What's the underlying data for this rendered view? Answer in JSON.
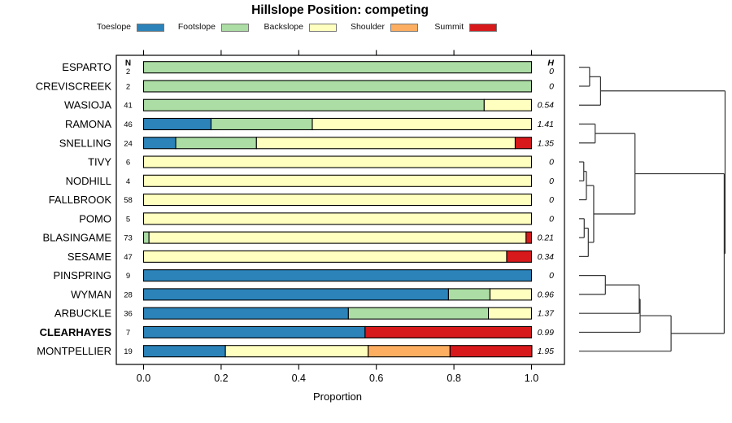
{
  "title": "Hillslope Position: competing",
  "legend": {
    "items": [
      {
        "label": "Toeslope",
        "color": "#2B83BA"
      },
      {
        "label": "Footslope",
        "color": "#ABDDA4"
      },
      {
        "label": "Backslope",
        "color": "#FFFFBF"
      },
      {
        "label": "Shoulder",
        "color": "#FDAE61"
      },
      {
        "label": "Summit",
        "color": "#D7191C"
      }
    ]
  },
  "chart_data": {
    "type": "bar",
    "orientation": "horizontal-stacked",
    "title": "Hillslope Position: competing",
    "xlabel": "Proportion",
    "xlim": [
      0,
      1
    ],
    "x_ticks": [
      "0.0",
      "0.2",
      "0.4",
      "0.6",
      "0.8",
      "1.0"
    ],
    "n_header": "N",
    "h_header": "H",
    "series_names": [
      "Toeslope",
      "Footslope",
      "Backslope",
      "Shoulder",
      "Summit"
    ],
    "series_colors": [
      "#2B83BA",
      "#ABDDA4",
      "#FFFFBF",
      "#FDAE61",
      "#D7191C"
    ],
    "rows": [
      {
        "name": "ESPARTO",
        "n": 2,
        "h": "0",
        "bold": false,
        "values": [
          0,
          1,
          0,
          0,
          0
        ]
      },
      {
        "name": "CREVISCREEK",
        "n": 2,
        "h": "0",
        "bold": false,
        "values": [
          0,
          1,
          0,
          0,
          0
        ]
      },
      {
        "name": "WASIOJA",
        "n": 41,
        "h": "0.54",
        "bold": false,
        "values": [
          0,
          0.878,
          0.122,
          0,
          0
        ]
      },
      {
        "name": "RAMONA",
        "n": 46,
        "h": "1.41",
        "bold": false,
        "values": [
          0.174,
          0.261,
          0.565,
          0,
          0
        ]
      },
      {
        "name": "SNELLING",
        "n": 24,
        "h": "1.35",
        "bold": false,
        "values": [
          0.083,
          0.208,
          0.667,
          0,
          0.042
        ]
      },
      {
        "name": "TIVY",
        "n": 6,
        "h": "0",
        "bold": false,
        "values": [
          0,
          0,
          1,
          0,
          0
        ]
      },
      {
        "name": "NODHILL",
        "n": 4,
        "h": "0",
        "bold": false,
        "values": [
          0,
          0,
          1,
          0,
          0
        ]
      },
      {
        "name": "FALLBROOK",
        "n": 58,
        "h": "0",
        "bold": false,
        "values": [
          0,
          0,
          1,
          0,
          0
        ]
      },
      {
        "name": "POMO",
        "n": 5,
        "h": "0",
        "bold": false,
        "values": [
          0,
          0,
          1,
          0,
          0
        ]
      },
      {
        "name": "BLASINGAME",
        "n": 73,
        "h": "0.21",
        "bold": false,
        "values": [
          0,
          0.014,
          0.972,
          0,
          0.014
        ]
      },
      {
        "name": "SESAME",
        "n": 47,
        "h": "0.34",
        "bold": false,
        "values": [
          0,
          0,
          0.936,
          0,
          0.064
        ]
      },
      {
        "name": "PINSPRING",
        "n": 9,
        "h": "0",
        "bold": false,
        "values": [
          1,
          0,
          0,
          0,
          0
        ]
      },
      {
        "name": "WYMAN",
        "n": 28,
        "h": "0.96",
        "bold": false,
        "values": [
          0.786,
          0.107,
          0.107,
          0,
          0
        ]
      },
      {
        "name": "ARBUCKLE",
        "n": 36,
        "h": "1.37",
        "bold": false,
        "values": [
          0.528,
          0.361,
          0.111,
          0,
          0
        ]
      },
      {
        "name": "CLEARHAYES",
        "n": 7,
        "h": "0.99",
        "bold": true,
        "values": [
          0.571,
          0,
          0,
          0,
          0.429
        ]
      },
      {
        "name": "MONTPELLIER",
        "n": 19,
        "h": "1.95",
        "bold": false,
        "values": [
          0.211,
          0,
          0.368,
          0.211,
          0.211
        ]
      }
    ],
    "dendrogram": {
      "merges": [
        {
          "id": "M0",
          "a": "L0",
          "b": "L1",
          "height": 0.072
        },
        {
          "id": "M1",
          "a": "M0",
          "b": "L2",
          "height": 0.147
        },
        {
          "id": "M2",
          "a": "L3",
          "b": "L4",
          "height": 0.11
        },
        {
          "id": "M3",
          "a": "L5",
          "b": "L6",
          "height": 0.032
        },
        {
          "id": "M4",
          "a": "M3",
          "b": "L7",
          "height": 0.05
        },
        {
          "id": "M5",
          "a": "L8",
          "b": "L9",
          "height": 0.035
        },
        {
          "id": "M6",
          "a": "M5",
          "b": "L10",
          "height": 0.063
        },
        {
          "id": "M7",
          "a": "M4",
          "b": "M6",
          "height": 0.1
        },
        {
          "id": "M8",
          "a": "M2",
          "b": "M7",
          "height": 0.383
        },
        {
          "id": "M9",
          "a": "L11",
          "b": "L12",
          "height": 0.18
        },
        {
          "id": "M10",
          "a": "M9",
          "b": "L13",
          "height": 0.412
        },
        {
          "id": "M11",
          "a": "M10",
          "b": "L14",
          "height": 0.418
        },
        {
          "id": "M12",
          "a": "M11",
          "b": "L15",
          "height": 0.63
        },
        {
          "id": "M13",
          "a": "M8",
          "b": "M12",
          "height": 0.994
        },
        {
          "id": "M14",
          "a": "M1",
          "b": "M13",
          "height": 1.0
        }
      ]
    }
  }
}
